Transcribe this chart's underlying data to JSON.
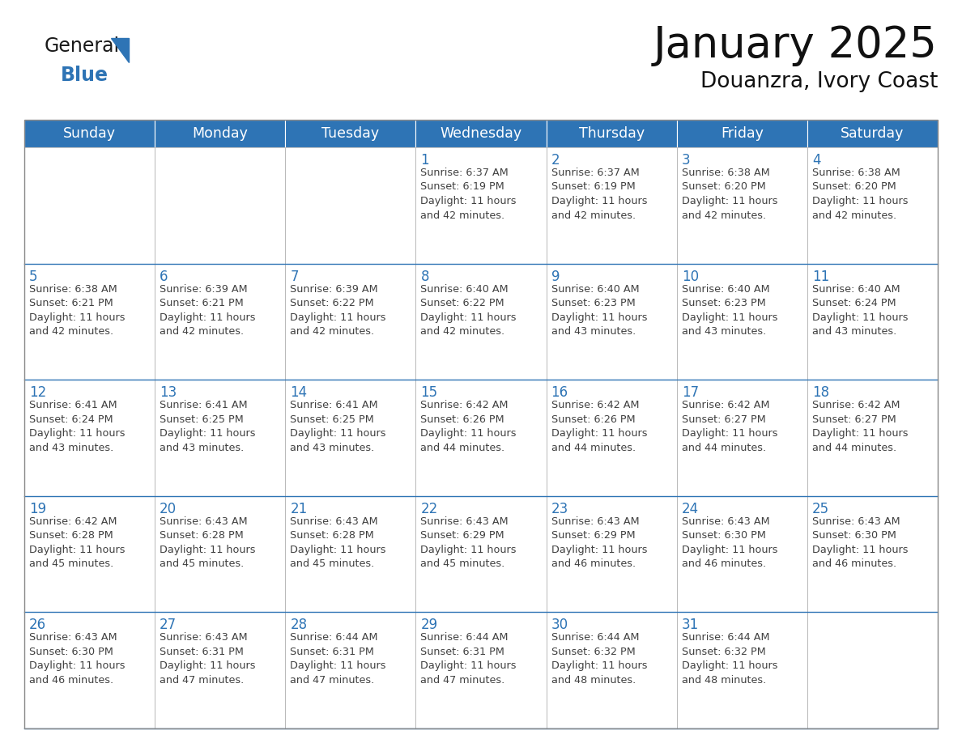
{
  "title": "January 2025",
  "subtitle": "Douanzra, Ivory Coast",
  "header_bg": "#2E74B5",
  "header_text_color": "#FFFFFF",
  "cell_bg_odd": "#F2F2F2",
  "cell_bg_even": "#FFFFFF",
  "cell_border": "#AAAAAA",
  "day_number_color": "#2E74B5",
  "content_text_color": "#404040",
  "days_of_week": [
    "Sunday",
    "Monday",
    "Tuesday",
    "Wednesday",
    "Thursday",
    "Friday",
    "Saturday"
  ],
  "weeks": [
    [
      {
        "day": "",
        "content": ""
      },
      {
        "day": "",
        "content": ""
      },
      {
        "day": "",
        "content": ""
      },
      {
        "day": "1",
        "content": "Sunrise: 6:37 AM\nSunset: 6:19 PM\nDaylight: 11 hours\nand 42 minutes."
      },
      {
        "day": "2",
        "content": "Sunrise: 6:37 AM\nSunset: 6:19 PM\nDaylight: 11 hours\nand 42 minutes."
      },
      {
        "day": "3",
        "content": "Sunrise: 6:38 AM\nSunset: 6:20 PM\nDaylight: 11 hours\nand 42 minutes."
      },
      {
        "day": "4",
        "content": "Sunrise: 6:38 AM\nSunset: 6:20 PM\nDaylight: 11 hours\nand 42 minutes."
      }
    ],
    [
      {
        "day": "5",
        "content": "Sunrise: 6:38 AM\nSunset: 6:21 PM\nDaylight: 11 hours\nand 42 minutes."
      },
      {
        "day": "6",
        "content": "Sunrise: 6:39 AM\nSunset: 6:21 PM\nDaylight: 11 hours\nand 42 minutes."
      },
      {
        "day": "7",
        "content": "Sunrise: 6:39 AM\nSunset: 6:22 PM\nDaylight: 11 hours\nand 42 minutes."
      },
      {
        "day": "8",
        "content": "Sunrise: 6:40 AM\nSunset: 6:22 PM\nDaylight: 11 hours\nand 42 minutes."
      },
      {
        "day": "9",
        "content": "Sunrise: 6:40 AM\nSunset: 6:23 PM\nDaylight: 11 hours\nand 43 minutes."
      },
      {
        "day": "10",
        "content": "Sunrise: 6:40 AM\nSunset: 6:23 PM\nDaylight: 11 hours\nand 43 minutes."
      },
      {
        "day": "11",
        "content": "Sunrise: 6:40 AM\nSunset: 6:24 PM\nDaylight: 11 hours\nand 43 minutes."
      }
    ],
    [
      {
        "day": "12",
        "content": "Sunrise: 6:41 AM\nSunset: 6:24 PM\nDaylight: 11 hours\nand 43 minutes."
      },
      {
        "day": "13",
        "content": "Sunrise: 6:41 AM\nSunset: 6:25 PM\nDaylight: 11 hours\nand 43 minutes."
      },
      {
        "day": "14",
        "content": "Sunrise: 6:41 AM\nSunset: 6:25 PM\nDaylight: 11 hours\nand 43 minutes."
      },
      {
        "day": "15",
        "content": "Sunrise: 6:42 AM\nSunset: 6:26 PM\nDaylight: 11 hours\nand 44 minutes."
      },
      {
        "day": "16",
        "content": "Sunrise: 6:42 AM\nSunset: 6:26 PM\nDaylight: 11 hours\nand 44 minutes."
      },
      {
        "day": "17",
        "content": "Sunrise: 6:42 AM\nSunset: 6:27 PM\nDaylight: 11 hours\nand 44 minutes."
      },
      {
        "day": "18",
        "content": "Sunrise: 6:42 AM\nSunset: 6:27 PM\nDaylight: 11 hours\nand 44 minutes."
      }
    ],
    [
      {
        "day": "19",
        "content": "Sunrise: 6:42 AM\nSunset: 6:28 PM\nDaylight: 11 hours\nand 45 minutes."
      },
      {
        "day": "20",
        "content": "Sunrise: 6:43 AM\nSunset: 6:28 PM\nDaylight: 11 hours\nand 45 minutes."
      },
      {
        "day": "21",
        "content": "Sunrise: 6:43 AM\nSunset: 6:28 PM\nDaylight: 11 hours\nand 45 minutes."
      },
      {
        "day": "22",
        "content": "Sunrise: 6:43 AM\nSunset: 6:29 PM\nDaylight: 11 hours\nand 45 minutes."
      },
      {
        "day": "23",
        "content": "Sunrise: 6:43 AM\nSunset: 6:29 PM\nDaylight: 11 hours\nand 46 minutes."
      },
      {
        "day": "24",
        "content": "Sunrise: 6:43 AM\nSunset: 6:30 PM\nDaylight: 11 hours\nand 46 minutes."
      },
      {
        "day": "25",
        "content": "Sunrise: 6:43 AM\nSunset: 6:30 PM\nDaylight: 11 hours\nand 46 minutes."
      }
    ],
    [
      {
        "day": "26",
        "content": "Sunrise: 6:43 AM\nSunset: 6:30 PM\nDaylight: 11 hours\nand 46 minutes."
      },
      {
        "day": "27",
        "content": "Sunrise: 6:43 AM\nSunset: 6:31 PM\nDaylight: 11 hours\nand 47 minutes."
      },
      {
        "day": "28",
        "content": "Sunrise: 6:44 AM\nSunset: 6:31 PM\nDaylight: 11 hours\nand 47 minutes."
      },
      {
        "day": "29",
        "content": "Sunrise: 6:44 AM\nSunset: 6:31 PM\nDaylight: 11 hours\nand 47 minutes."
      },
      {
        "day": "30",
        "content": "Sunrise: 6:44 AM\nSunset: 6:32 PM\nDaylight: 11 hours\nand 48 minutes."
      },
      {
        "day": "31",
        "content": "Sunrise: 6:44 AM\nSunset: 6:32 PM\nDaylight: 11 hours\nand 48 minutes."
      },
      {
        "day": "",
        "content": ""
      }
    ]
  ],
  "logo_general_color": "#1a1a1a",
  "logo_blue_color": "#2E74B5",
  "title_fontsize": 38,
  "subtitle_fontsize": 19,
  "header_fontsize": 12.5,
  "day_num_fontsize": 12,
  "content_fontsize": 9.2
}
